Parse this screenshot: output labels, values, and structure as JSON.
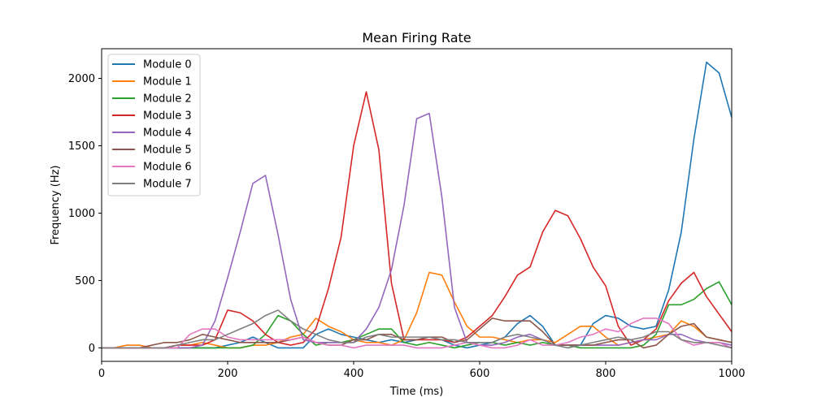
{
  "chart_data": {
    "type": "line",
    "title": "Mean Firing Rate",
    "xlabel": "Time (ms)",
    "ylabel": "Frequency (Hz)",
    "xlim": [
      0,
      1000
    ],
    "ylim": [
      -100,
      2220
    ],
    "xticks": [
      0,
      200,
      400,
      600,
      800,
      1000
    ],
    "yticks": [
      0,
      500,
      1000,
      1500,
      2000
    ],
    "grid": false,
    "legend_position": "top-left",
    "x": [
      0,
      20,
      40,
      60,
      80,
      100,
      120,
      140,
      160,
      180,
      200,
      220,
      240,
      260,
      280,
      300,
      320,
      340,
      360,
      380,
      400,
      420,
      440,
      460,
      480,
      500,
      520,
      540,
      560,
      580,
      600,
      620,
      640,
      660,
      680,
      700,
      720,
      740,
      760,
      780,
      800,
      820,
      840,
      860,
      880,
      900,
      920,
      940,
      960,
      980,
      1000
    ],
    "series": [
      {
        "name": "Module 0",
        "color": "#1f77b4",
        "values": [
          0,
          0,
          0,
          0,
          0,
          0,
          0,
          0,
          0,
          0,
          20,
          40,
          80,
          40,
          0,
          0,
          0,
          100,
          140,
          100,
          80,
          60,
          40,
          60,
          40,
          60,
          80,
          60,
          20,
          0,
          20,
          40,
          80,
          180,
          240,
          160,
          20,
          20,
          20,
          180,
          240,
          220,
          160,
          140,
          160,
          430,
          860,
          1550,
          2120,
          2040,
          1710
        ]
      },
      {
        "name": "Module 1",
        "color": "#ff7f0e",
        "values": [
          0,
          0,
          20,
          20,
          0,
          0,
          20,
          20,
          40,
          20,
          0,
          0,
          20,
          20,
          40,
          80,
          100,
          220,
          160,
          120,
          60,
          40,
          40,
          20,
          60,
          260,
          560,
          540,
          340,
          160,
          80,
          80,
          60,
          40,
          60,
          60,
          40,
          100,
          160,
          160,
          80,
          20,
          40,
          60,
          80,
          100,
          200,
          160,
          80,
          60,
          40
        ]
      },
      {
        "name": "Module 2",
        "color": "#2ca02c",
        "values": [
          0,
          0,
          0,
          0,
          0,
          0,
          0,
          0,
          0,
          0,
          0,
          0,
          20,
          100,
          240,
          200,
          100,
          20,
          40,
          40,
          60,
          100,
          140,
          140,
          40,
          20,
          40,
          20,
          0,
          20,
          40,
          40,
          20,
          40,
          20,
          40,
          20,
          20,
          0,
          0,
          0,
          0,
          0,
          20,
          100,
          320,
          320,
          360,
          440,
          490,
          320
        ]
      },
      {
        "name": "Module 3",
        "color": "#d62728",
        "values": [
          0,
          0,
          0,
          0,
          0,
          0,
          20,
          20,
          20,
          60,
          280,
          260,
          200,
          100,
          40,
          20,
          40,
          140,
          440,
          820,
          1500,
          1900,
          1470,
          480,
          60,
          60,
          60,
          60,
          40,
          80,
          160,
          240,
          380,
          540,
          600,
          860,
          1020,
          980,
          810,
          600,
          460,
          160,
          20,
          60,
          140,
          350,
          480,
          560,
          380,
          250,
          120
        ]
      },
      {
        "name": "Module 4",
        "color": "#9467bd",
        "values": [
          0,
          0,
          0,
          0,
          0,
          0,
          0,
          0,
          20,
          200,
          520,
          860,
          1220,
          1280,
          840,
          360,
          60,
          40,
          40,
          40,
          40,
          140,
          300,
          580,
          1060,
          1700,
          1740,
          1120,
          300,
          40,
          20,
          20,
          40,
          80,
          100,
          60,
          20,
          20,
          20,
          20,
          20,
          20,
          40,
          60,
          60,
          100,
          100,
          60,
          40,
          40,
          20
        ]
      },
      {
        "name": "Module 5",
        "color": "#8c564b",
        "values": [
          0,
          0,
          0,
          0,
          20,
          40,
          40,
          60,
          100,
          80,
          60,
          40,
          40,
          40,
          40,
          60,
          80,
          40,
          20,
          20,
          60,
          60,
          100,
          100,
          60,
          60,
          80,
          80,
          40,
          60,
          140,
          220,
          200,
          200,
          200,
          120,
          20,
          20,
          20,
          20,
          40,
          60,
          60,
          0,
          20,
          100,
          160,
          180,
          80,
          60,
          40
        ]
      },
      {
        "name": "Module 6",
        "color": "#e377c2",
        "values": [
          0,
          0,
          0,
          0,
          0,
          0,
          0,
          100,
          140,
          140,
          80,
          60,
          60,
          60,
          60,
          60,
          80,
          40,
          20,
          20,
          0,
          20,
          20,
          20,
          20,
          0,
          0,
          0,
          20,
          40,
          20,
          0,
          0,
          20,
          60,
          20,
          20,
          40,
          80,
          100,
          140,
          120,
          180,
          220,
          220,
          180,
          60,
          20,
          40,
          40,
          0
        ]
      },
      {
        "name": "Module 7",
        "color": "#7f7f7f",
        "values": [
          0,
          0,
          0,
          0,
          0,
          0,
          20,
          40,
          60,
          60,
          100,
          140,
          180,
          240,
          280,
          200,
          140,
          100,
          60,
          40,
          40,
          80,
          100,
          80,
          80,
          80,
          80,
          60,
          60,
          40,
          40,
          40,
          80,
          100,
          80,
          60,
          20,
          0,
          20,
          40,
          60,
          80,
          60,
          80,
          120,
          120,
          60,
          40,
          40,
          20,
          0
        ]
      }
    ]
  }
}
